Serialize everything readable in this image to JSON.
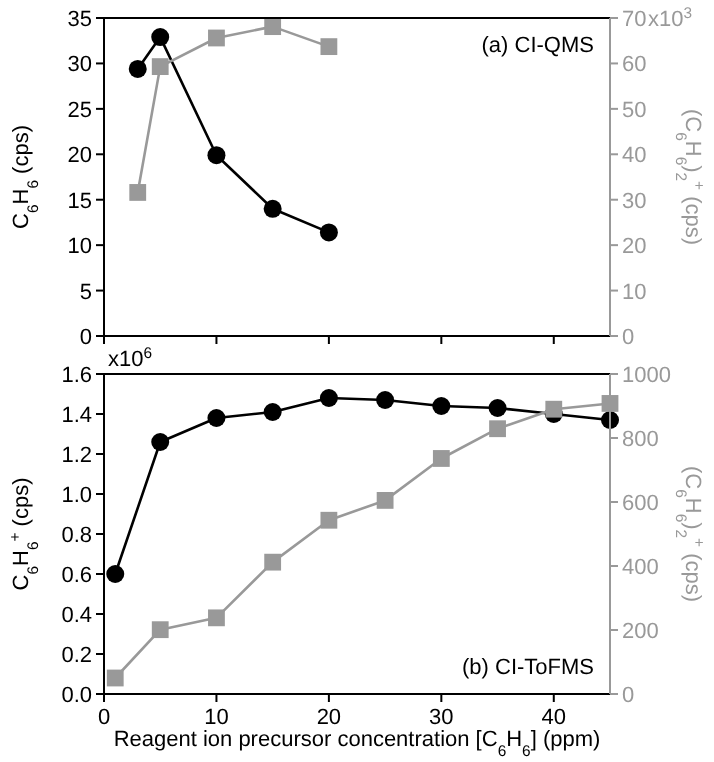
{
  "chart_data": [
    {
      "type": "line",
      "annotations": [
        "(a) CI-QMS",
        "x10$^{3}$"
      ],
      "ylabel": "C$_{6}$H$_{6}$ (cps)",
      "y2label": "(C$_{6}$H$_{6}$)$_{2}$$^{+}$ (cps)",
      "xlim": [
        0,
        45
      ],
      "xticks": [
        {
          "value": 0,
          "label": null
        },
        {
          "value": 10,
          "label": null
        },
        {
          "value": 20,
          "label": null
        },
        {
          "value": 30,
          "label": null
        },
        {
          "value": 40,
          "label": null
        }
      ],
      "ylim": [
        0,
        35
      ],
      "yticks": [
        0,
        5,
        10,
        15,
        20,
        25,
        30,
        35
      ],
      "y2lim": [
        0,
        70
      ],
      "y2ticks": [
        0,
        10,
        20,
        30,
        40,
        50,
        60,
        70
      ],
      "tick_labels": "y",
      "grid": false,
      "line_style": "solid",
      "series": [
        {
          "color": "#000000",
          "marker": "circle",
          "x": [
            3,
            5,
            10,
            15,
            20
          ],
          "values": [
            29.4,
            32.9,
            19.9,
            14.0,
            11.4
          ]
        },
        {
          "color": "#999999",
          "marker": "square",
          "axis": "y2",
          "x": [
            3,
            5,
            10,
            15,
            20
          ],
          "values": [
            31.6,
            59.3,
            65.6,
            68.1,
            63.7
          ]
        }
      ]
    },
    {
      "type": "line",
      "annotations": [
        "(b) CI-ToFMS",
        "x10$^{6}$"
      ],
      "xlabel": "Reagent ion precursor concentration [C$_{6}$H$_{6}$] (ppm)",
      "ylabel": "C$_{6}$H$_{6}$$^{+}$ (cps)",
      "y2label": "(C$_{6}$H$_{6}$)$_{2}$$^{+}$ (cps)",
      "xlim": [
        0,
        45
      ],
      "xticks": [
        0,
        10,
        20,
        30,
        40
      ],
      "ylim": [
        0,
        1.6
      ],
      "yticks": [
        {
          "value": 0,
          "label": "0.0"
        },
        0.2,
        0.4,
        0.6,
        0.8,
        {
          "value": 1,
          "label": "1.0"
        },
        1.2,
        1.4,
        1.6
      ],
      "y2lim": [
        0,
        1000
      ],
      "y2ticks": [
        0,
        200,
        400,
        600,
        800,
        1000
      ],
      "grid": false,
      "line_style": "solid",
      "series": [
        {
          "color": "#000000",
          "marker": "circle",
          "x": [
            1,
            5,
            10,
            15,
            20,
            25,
            30,
            35,
            40,
            45
          ],
          "values": [
            0.6,
            1.26,
            1.38,
            1.41,
            1.48,
            1.47,
            1.44,
            1.43,
            1.4,
            1.37
          ]
        },
        {
          "color": "#999999",
          "marker": "square",
          "axis": "y2",
          "x": [
            1,
            5,
            10,
            15,
            20,
            25,
            30,
            35,
            40,
            45
          ],
          "values": [
            50,
            201,
            238,
            412,
            543,
            605,
            736,
            829,
            890,
            908
          ]
        }
      ]
    }
  ]
}
